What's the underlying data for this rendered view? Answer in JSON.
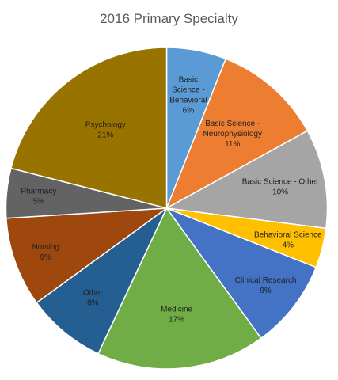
{
  "chart_data": {
    "type": "pie",
    "title": "2016 Primary Specialty",
    "slices": [
      {
        "label": "Basic Science - Behavioral",
        "lines": [
          "Basic",
          "Science -",
          "Behavioral"
        ],
        "value": 6,
        "display": "6%",
        "color": "#5B9BD5",
        "text_color": "#222222"
      },
      {
        "label": "Basic Science - Neurophysiology",
        "lines": [
          "Basic Science -",
          "Neurophysiology"
        ],
        "value": 11,
        "display": "11%",
        "color": "#ED7D31",
        "text_color": "#222222"
      },
      {
        "label": "Basic Science - Other",
        "lines": [
          "Basic Science - Other"
        ],
        "value": 10,
        "display": "10%",
        "color": "#A5A5A5",
        "text_color": "#222222"
      },
      {
        "label": "Behavioral Science",
        "lines": [
          "Behavioral Science"
        ],
        "value": 4,
        "display": "4%",
        "color": "#FFC000",
        "text_color": "#222222"
      },
      {
        "label": "Clinical Research",
        "lines": [
          "Clinical Research"
        ],
        "value": 9,
        "display": "9%",
        "color": "#4472C4",
        "text_color": "#222222"
      },
      {
        "label": "Medicine",
        "lines": [
          "Medicine"
        ],
        "value": 17,
        "display": "17%",
        "color": "#70AD47",
        "text_color": "#222222"
      },
      {
        "label": "Other",
        "lines": [
          "Other"
        ],
        "value": 8,
        "display": "8%",
        "color": "#255E91",
        "text_color": "#222222"
      },
      {
        "label": "Nursing",
        "lines": [
          "Nursing"
        ],
        "value": 9,
        "display": "9%",
        "color": "#9E480E",
        "text_color": "#222222"
      },
      {
        "label": "Pharmacy",
        "lines": [
          "Pharmacy"
        ],
        "value": 5,
        "display": "5%",
        "color": "#636363",
        "text_color": "#222222"
      },
      {
        "label": "Psychology",
        "lines": [
          "Psychology"
        ],
        "value": 21,
        "display": "21%",
        "color": "#997300",
        "text_color": "#222222"
      }
    ]
  }
}
